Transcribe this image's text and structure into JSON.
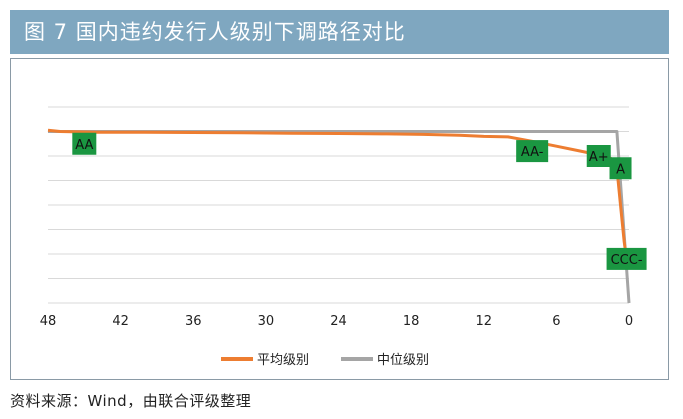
{
  "header": {
    "title": "图 7  国内违约发行人级别下调路径对比"
  },
  "footer": {
    "source": "资料来源：Wind，由联合评级整理"
  },
  "chart_data": {
    "type": "line",
    "title": "图 7  国内违约发行人级别下调路径对比",
    "xlabel": "",
    "ylabel": "",
    "x_ticks": [
      48,
      42,
      36,
      30,
      24,
      18,
      12,
      6,
      0
    ],
    "xlim": [
      48,
      0
    ],
    "x_reversed": true,
    "ylim": [
      0,
      8
    ],
    "grid": true,
    "legend_position": "bottom",
    "series": [
      {
        "name": "平均级别",
        "color": "#ed7d31",
        "x": [
          48,
          47,
          44,
          40,
          36,
          32,
          28,
          24,
          20,
          17,
          14,
          12,
          10,
          8,
          6,
          4,
          3,
          2,
          1.5,
          1,
          0.7,
          0.4,
          0.2
        ],
        "y": [
          7.05,
          7.0,
          6.97,
          6.97,
          6.96,
          6.95,
          6.93,
          6.92,
          6.9,
          6.88,
          6.85,
          6.8,
          6.78,
          6.6,
          6.4,
          6.2,
          6.1,
          6.0,
          5.9,
          5.5,
          4.0,
          2.5,
          1.8
        ]
      },
      {
        "name": "中位级别",
        "color": "#a5a5a5",
        "x": [
          48,
          24,
          1,
          0
        ],
        "y": [
          7.0,
          7.0,
          7.0,
          0.0
        ]
      }
    ],
    "annotations": [
      {
        "text": "AA",
        "x": 45,
        "y": 6.5
      },
      {
        "text": "AA-",
        "x": 8,
        "y": 6.2
      },
      {
        "text": "A+",
        "x": 2.5,
        "y": 6.0
      },
      {
        "text": "A",
        "x": 0.7,
        "y": 5.5
      },
      {
        "text": "CCC-",
        "x": 0.2,
        "y": 1.8
      }
    ]
  }
}
